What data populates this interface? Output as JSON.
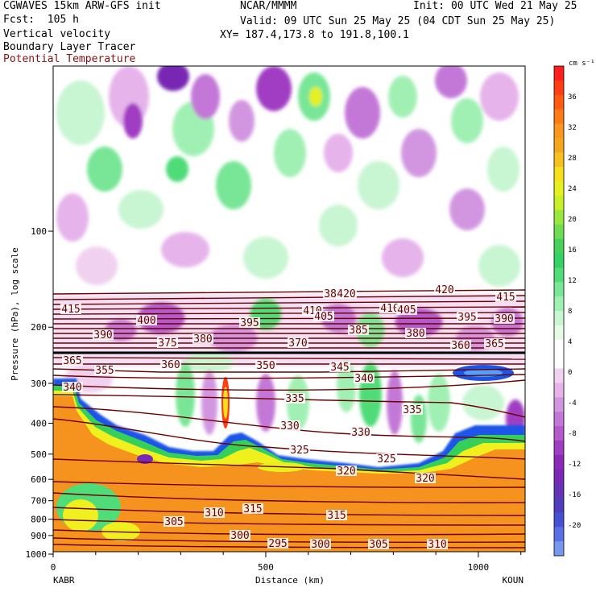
{
  "header": {
    "model": "CGWAVES 15km ARW-GFS init",
    "forecast": "Fcst:  105 h",
    "field1": "Vertical velocity",
    "field2": "Boundary Layer Tracer",
    "field3": "Potential Temperature",
    "center": "NCAR/MMMM",
    "init": "Init: 00 UTC Wed 21 May 25",
    "valid": "Valid: 09 UTC Sun 25 May 25 (04 CDT Sun 25 May 25)",
    "xy": "XY= 187.4,173.8 to 191.8,100.1"
  },
  "colors": {
    "theta": "#6b0000",
    "pbl_orange": "#f6921e",
    "pbl_yellow": "#f0f01e",
    "pbl_green": "#34d05a",
    "pbl_blue": "#1a55e8"
  },
  "chart_data": {
    "type": "heatmap",
    "ylabel": "Pressure (hPa), log scale",
    "xlabel": "Distance (km)",
    "x_ticks": [
      "0",
      "500",
      "1000"
    ],
    "y_ticks": [
      "100",
      "200",
      "300",
      "400",
      "500",
      "600",
      "700",
      "800",
      "900",
      "1000"
    ],
    "left_station": "KABR",
    "right_station": "KOUN",
    "colorbar": {
      "unit": "cm s⁻¹",
      "labels": [
        "36",
        "32",
        "28",
        "24",
        "20",
        "16",
        "12",
        "8",
        "4",
        "0",
        "-4",
        "-8",
        "-12",
        "-16",
        "-20"
      ],
      "colors": [
        "#ff1e1e",
        "#ff3c14",
        "#ff5a0f",
        "#ff7a14",
        "#fa961e",
        "#f6a61e",
        "#f6c01e",
        "#f6e01e",
        "#e6f01e",
        "#c8f028",
        "#9be63c",
        "#6edc50",
        "#46d25a",
        "#32d264",
        "#50dc78",
        "#78e696",
        "#a0f0b4",
        "#c8f5d2",
        "#e6fae6",
        "#ffffff",
        "#ffffff",
        "#f0d2f0",
        "#e6b4eb",
        "#d296e1",
        "#c378d7",
        "#b45acd",
        "#a03cc3",
        "#8c28b9",
        "#7828b4",
        "#6432b4",
        "#503cbe",
        "#4650d2",
        "#5a6ee6",
        "#7896f0"
      ]
    },
    "theta_labels": [
      "415",
      "400",
      "390",
      "375",
      "380",
      "365",
      "355",
      "360",
      "340",
      "395",
      "410",
      "405",
      "420",
      "385",
      "370",
      "350",
      "345",
      "335",
      "330",
      "325",
      "320",
      "310",
      "315",
      "305",
      "300",
      "295"
    ]
  }
}
